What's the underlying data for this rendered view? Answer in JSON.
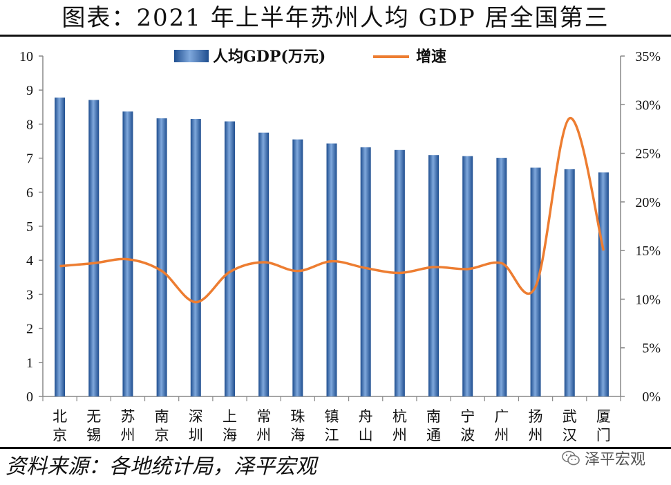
{
  "chart_data": {
    "type": "bar+line",
    "title": "图表：2021 年上半年苏州人均 GDP 居全国第三",
    "categories": [
      [
        "北",
        "京"
      ],
      [
        "无",
        "锡"
      ],
      [
        "苏",
        "州"
      ],
      [
        "南",
        "京"
      ],
      [
        "深",
        "圳"
      ],
      [
        "上",
        "海"
      ],
      [
        "常",
        "州"
      ],
      [
        "珠",
        "海"
      ],
      [
        "镇",
        "江"
      ],
      [
        "舟",
        "山"
      ],
      [
        "杭",
        "州"
      ],
      [
        "南",
        "通"
      ],
      [
        "宁",
        "波"
      ],
      [
        "广",
        "州"
      ],
      [
        "扬",
        "州"
      ],
      [
        "武",
        "汉"
      ],
      [
        "厦",
        "门"
      ]
    ],
    "series": [
      {
        "name": "人均GDP(万元)",
        "type": "bar",
        "axis": "left",
        "color": "#3a6fb0",
        "values": [
          8.78,
          8.71,
          8.37,
          8.17,
          8.15,
          8.08,
          7.75,
          7.55,
          7.43,
          7.32,
          7.24,
          7.09,
          7.06,
          7.01,
          6.72,
          6.68,
          6.58
        ]
      },
      {
        "name": "增速",
        "type": "line",
        "axis": "right",
        "color": "#ed7d31",
        "values": [
          13.4,
          13.7,
          14.1,
          12.9,
          9.7,
          12.8,
          13.8,
          12.9,
          13.9,
          13.2,
          12.7,
          13.3,
          13.1,
          13.7,
          11.3,
          28.6,
          15.0
        ]
      }
    ],
    "left_axis": {
      "min": 0,
      "max": 10,
      "step": 1,
      "ticks": [
        "0",
        "1",
        "2",
        "3",
        "4",
        "5",
        "6",
        "7",
        "8",
        "9",
        "10"
      ]
    },
    "right_axis": {
      "min": 0,
      "max": 35,
      "step": 5,
      "ticks": [
        "0%",
        "5%",
        "10%",
        "15%",
        "20%",
        "25%",
        "30%",
        "35%"
      ]
    },
    "legend_placement": "top-center",
    "grid": false
  },
  "source": "资料来源：各地统计局，泽平宏观",
  "watermark": "泽平宏观"
}
